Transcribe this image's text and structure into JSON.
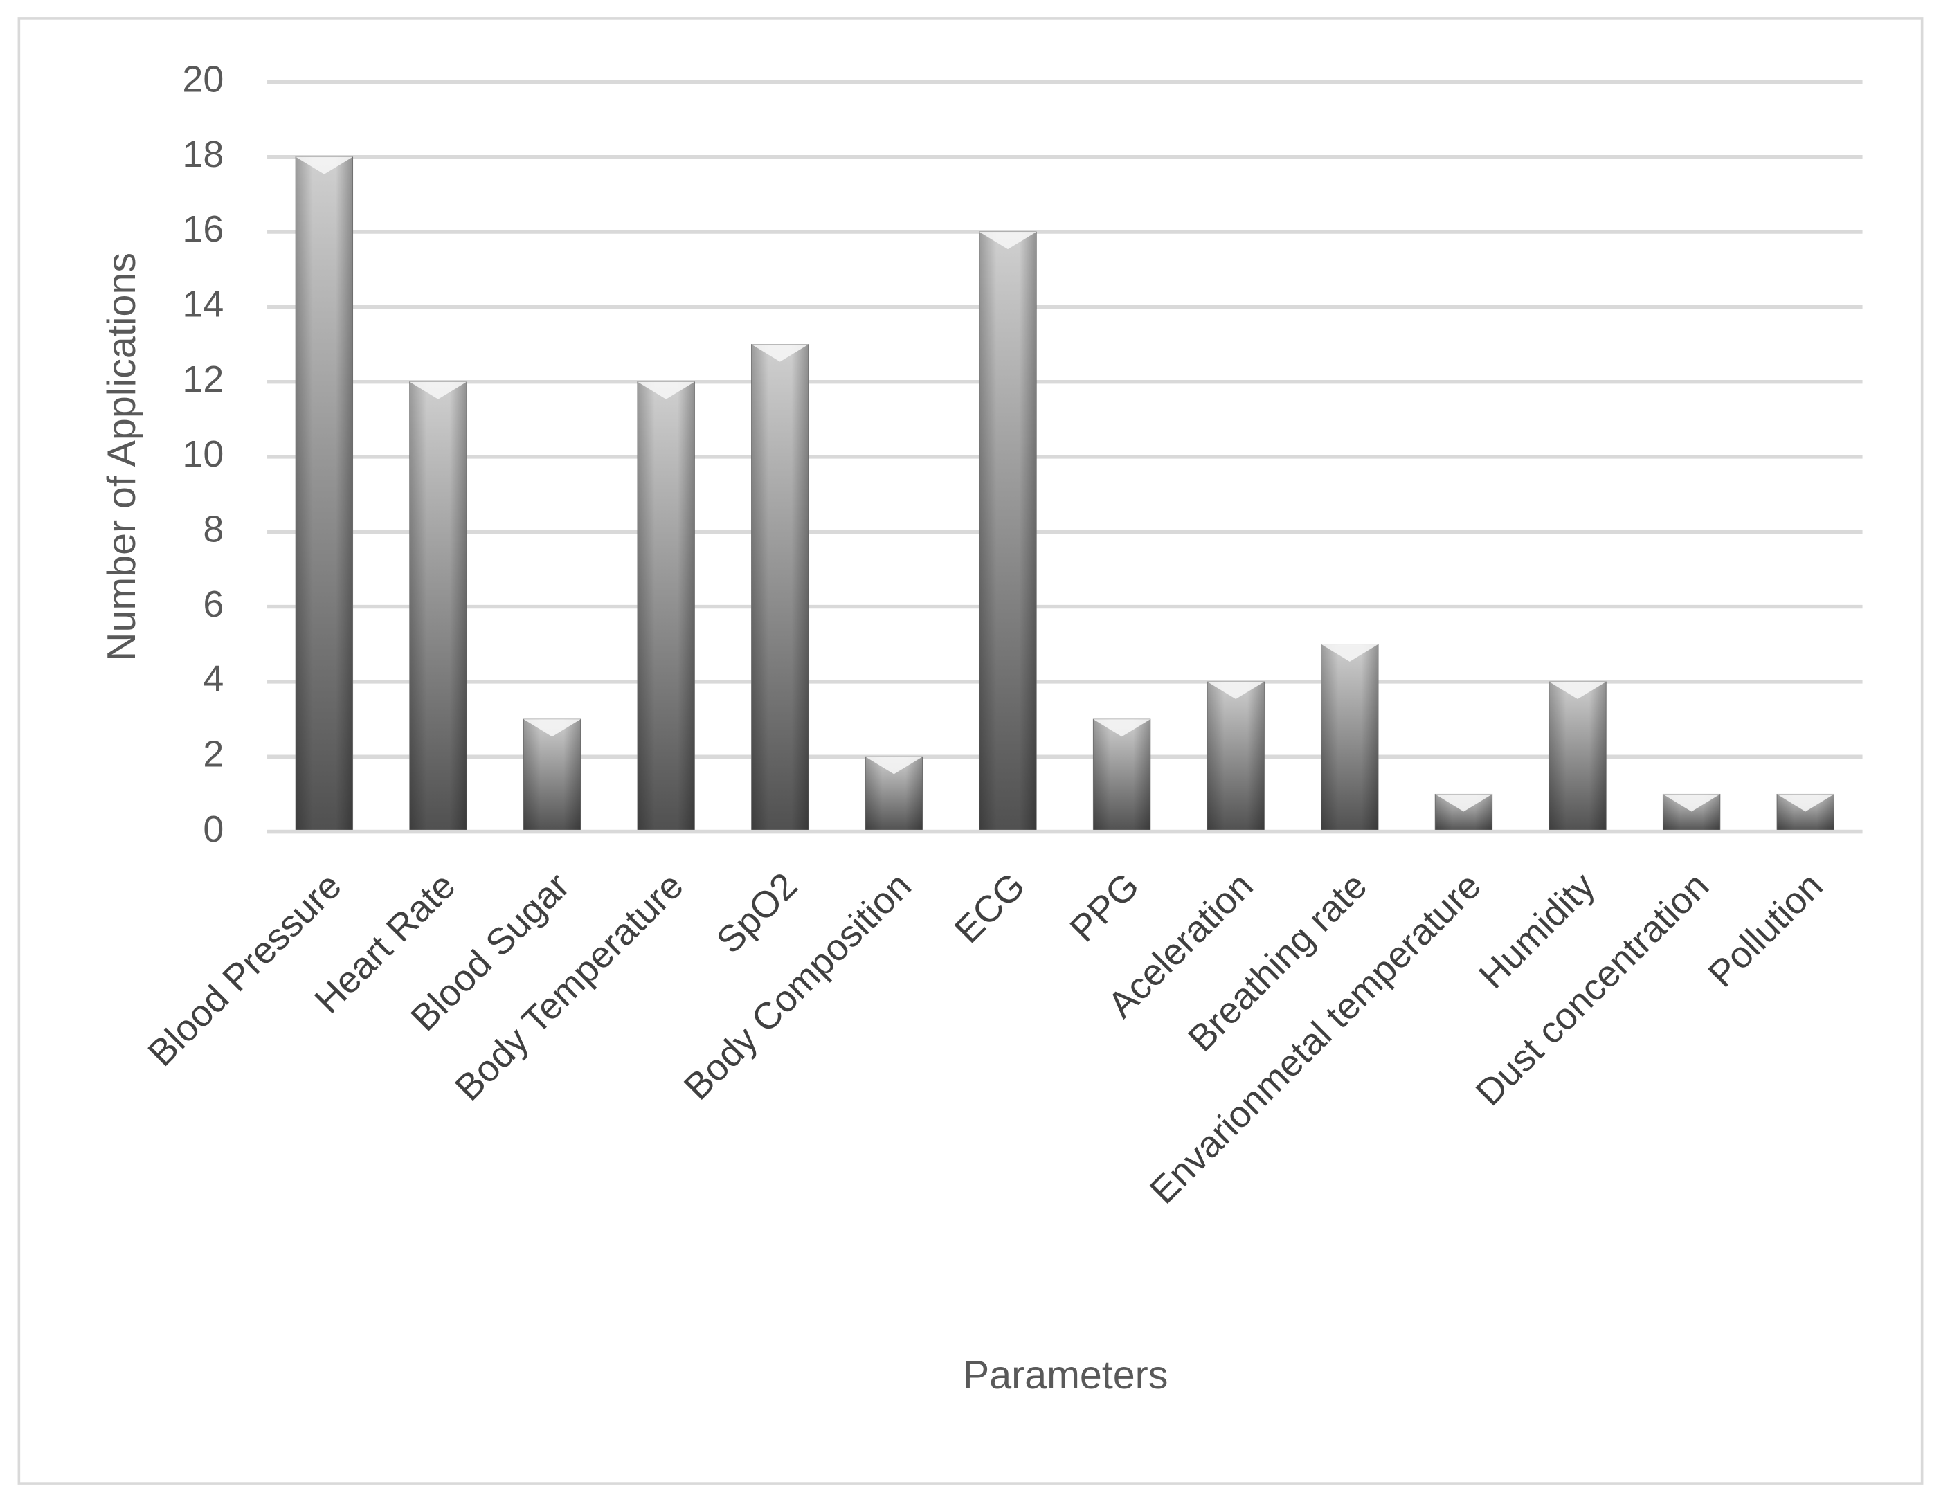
{
  "chart_data": {
    "type": "bar",
    "x_label": "Parameters",
    "y_label": "Number of Applications",
    "categories": [
      "Blood Pressure",
      "Heart Rate",
      "Blood Sugar",
      "Body Temperature",
      "SpO2",
      "Body Composition",
      "ECG",
      "PPG",
      "Aceleration",
      "Breathing rate",
      "Envarionmetal temperature",
      "Humidity",
      "Dust concentration",
      "Pollution"
    ],
    "values": [
      18,
      12,
      3,
      12,
      13,
      2,
      16,
      3,
      4,
      5,
      1,
      4,
      1,
      1
    ],
    "color": "#7f7f7f",
    "ylim": [
      0,
      20
    ],
    "yticks": [
      0,
      2,
      4,
      6,
      8,
      10,
      12,
      14,
      16,
      18,
      20
    ],
    "grid": true
  }
}
